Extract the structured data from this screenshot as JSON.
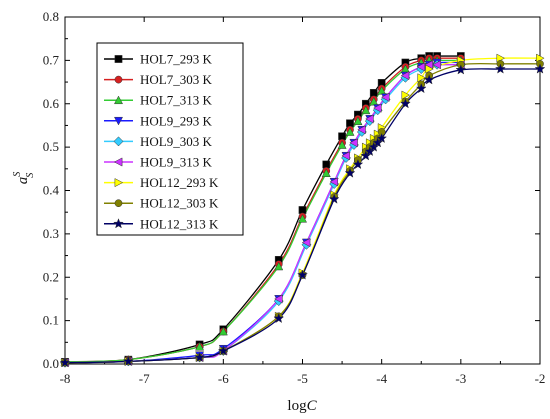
{
  "chart_data": {
    "type": "line",
    "xlabel": {
      "main": "log",
      "italic": "C"
    },
    "ylabel": {
      "base": "a",
      "sup": "S",
      "sub": "S"
    },
    "xlim": [
      -8,
      -2
    ],
    "ylim": [
      0,
      0.8
    ],
    "x_ticks": [
      "-8",
      "-7",
      "-6",
      "-5",
      "-4",
      "-3",
      "-2"
    ],
    "x_tick_values": [
      -8,
      -7,
      -6,
      -5,
      -4,
      -3,
      -2
    ],
    "y_ticks": [
      "0.0",
      "0.1",
      "0.2",
      "0.3",
      "0.4",
      "0.5",
      "0.6",
      "0.7",
      "0.8"
    ],
    "y_tick_values": [
      0,
      0.1,
      0.2,
      0.3,
      0.4,
      0.5,
      0.6,
      0.7,
      0.8
    ],
    "grid": false,
    "legend_position": "top-left",
    "series": [
      {
        "name": "HOL7_293 K",
        "color": "#000000",
        "marker": "square",
        "x": [
          -8,
          -7.2,
          -6.3,
          -6.0,
          -5.3,
          -5.0,
          -4.7,
          -4.5,
          -4.4,
          -4.3,
          -4.2,
          -4.1,
          -4.0,
          -3.7,
          -3.5,
          -3.4,
          -3.3,
          -3.0
        ],
        "y": [
          0.005,
          0.01,
          0.045,
          0.08,
          0.24,
          0.355,
          0.46,
          0.525,
          0.555,
          0.575,
          0.6,
          0.625,
          0.648,
          0.695,
          0.705,
          0.71,
          0.71,
          0.71
        ]
      },
      {
        "name": "HOL7_303 K",
        "color": "#d62020",
        "marker": "circle",
        "x": [
          -8,
          -7.2,
          -6.3,
          -6.0,
          -5.3,
          -5.0,
          -4.7,
          -4.5,
          -4.4,
          -4.3,
          -4.2,
          -4.1,
          -4.0,
          -3.7,
          -3.5,
          -3.4,
          -3.3,
          -3.0
        ],
        "y": [
          0.005,
          0.01,
          0.04,
          0.075,
          0.23,
          0.34,
          0.445,
          0.51,
          0.54,
          0.565,
          0.59,
          0.61,
          0.635,
          0.685,
          0.7,
          0.705,
          0.705,
          0.705
        ]
      },
      {
        "name": "HOL7_313 K",
        "color": "#33cc33",
        "marker": "triangle-up",
        "x": [
          -8,
          -7.2,
          -6.3,
          -6.0,
          -5.3,
          -5.0,
          -4.7,
          -4.5,
          -4.4,
          -4.3,
          -4.2,
          -4.1,
          -4.0,
          -3.7,
          -3.5,
          -3.4,
          -3.3,
          -3.0
        ],
        "y": [
          0.005,
          0.01,
          0.04,
          0.075,
          0.225,
          0.335,
          0.44,
          0.505,
          0.535,
          0.56,
          0.585,
          0.605,
          0.63,
          0.68,
          0.695,
          0.7,
          0.7,
          0.7
        ]
      },
      {
        "name": "HOL9_293 K",
        "color": "#1a1aff",
        "marker": "triangle-down",
        "x": [
          -8,
          -7.2,
          -6.3,
          -6.0,
          -5.3,
          -4.95,
          -4.6,
          -4.45,
          -4.35,
          -4.25,
          -4.15,
          -4.05,
          -3.95,
          -3.7,
          -3.5,
          -3.4,
          -3.3,
          -3.0
        ],
        "y": [
          0.003,
          0.006,
          0.02,
          0.035,
          0.15,
          0.28,
          0.42,
          0.48,
          0.51,
          0.54,
          0.565,
          0.59,
          0.615,
          0.665,
          0.685,
          0.69,
          0.695,
          0.695
        ]
      },
      {
        "name": "HOL9_303 K",
        "color": "#33ccff",
        "marker": "diamond",
        "x": [
          -8,
          -7.2,
          -6.3,
          -6.0,
          -5.3,
          -4.95,
          -4.6,
          -4.45,
          -4.35,
          -4.25,
          -4.15,
          -4.05,
          -3.95,
          -3.7,
          -3.5,
          -3.4,
          -3.3,
          -3.0
        ],
        "y": [
          0.003,
          0.006,
          0.015,
          0.03,
          0.145,
          0.275,
          0.415,
          0.475,
          0.505,
          0.535,
          0.56,
          0.585,
          0.61,
          0.66,
          0.68,
          0.685,
          0.69,
          0.69
        ]
      },
      {
        "name": "HOL9_313 K",
        "color": "#cc33ff",
        "marker": "triangle-left",
        "x": [
          -8,
          -7.2,
          -6.3,
          -6.0,
          -5.3,
          -4.95,
          -4.6,
          -4.45,
          -4.35,
          -4.25,
          -4.15,
          -4.05,
          -3.95,
          -3.7,
          -3.5,
          -3.4,
          -3.3,
          -3.0
        ],
        "y": [
          0.003,
          0.006,
          0.015,
          0.03,
          0.15,
          0.28,
          0.42,
          0.48,
          0.51,
          0.54,
          0.565,
          0.59,
          0.615,
          0.665,
          0.685,
          0.69,
          0.69,
          0.69
        ]
      },
      {
        "name": "HOL12_293 K",
        "color": "#ffff00",
        "marker": "triangle-right",
        "x": [
          -8,
          -7.2,
          -6.3,
          -6.0,
          -5.3,
          -5.0,
          -4.6,
          -4.4,
          -4.3,
          -4.2,
          -4.15,
          -4.1,
          -4.05,
          -4.0,
          -3.7,
          -3.5,
          -3.4,
          -3.0,
          -2.5,
          -2.0
        ],
        "y": [
          0.003,
          0.006,
          0.015,
          0.03,
          0.11,
          0.21,
          0.39,
          0.45,
          0.475,
          0.5,
          0.51,
          0.52,
          0.53,
          0.545,
          0.62,
          0.66,
          0.68,
          0.7,
          0.705,
          0.705
        ]
      },
      {
        "name": "HOL12_303 K",
        "color": "#808000",
        "marker": "circle",
        "x": [
          -8,
          -7.2,
          -6.3,
          -6.0,
          -5.3,
          -5.0,
          -4.6,
          -4.4,
          -4.3,
          -4.2,
          -4.15,
          -4.1,
          -4.05,
          -4.0,
          -3.7,
          -3.5,
          -3.4,
          -3.0,
          -2.5,
          -2.0
        ],
        "y": [
          0.003,
          0.006,
          0.015,
          0.03,
          0.11,
          0.205,
          0.385,
          0.445,
          0.47,
          0.49,
          0.5,
          0.51,
          0.52,
          0.535,
          0.605,
          0.645,
          0.665,
          0.69,
          0.692,
          0.692
        ]
      },
      {
        "name": "HOL12_313 K",
        "color": "#000066",
        "marker": "star",
        "x": [
          -8,
          -7.2,
          -6.3,
          -6.0,
          -5.3,
          -5.0,
          -4.6,
          -4.4,
          -4.3,
          -4.2,
          -4.15,
          -4.1,
          -4.05,
          -4.0,
          -3.7,
          -3.5,
          -3.4,
          -3.0,
          -2.5,
          -2.0
        ],
        "y": [
          0.003,
          0.006,
          0.015,
          0.03,
          0.105,
          0.205,
          0.38,
          0.44,
          0.46,
          0.48,
          0.49,
          0.5,
          0.51,
          0.52,
          0.6,
          0.635,
          0.655,
          0.678,
          0.68,
          0.68
        ]
      }
    ]
  }
}
